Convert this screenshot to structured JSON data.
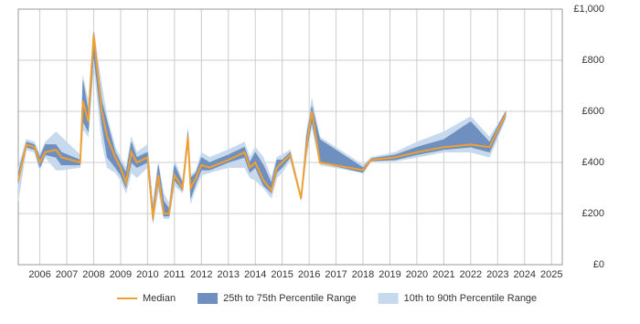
{
  "chart_data": {
    "type": "line",
    "x": [
      2005.2,
      2005.5,
      2005.8,
      2006.0,
      2006.2,
      2006.6,
      2006.8,
      2007.5,
      2007.6,
      2007.8,
      2008.0,
      2008.3,
      2008.5,
      2008.8,
      2009.0,
      2009.2,
      2009.4,
      2009.6,
      2010.0,
      2010.2,
      2010.4,
      2010.6,
      2010.8,
      2011.0,
      2011.3,
      2011.5,
      2011.6,
      2011.8,
      2012.0,
      2012.3,
      2013.0,
      2013.6,
      2013.8,
      2014.0,
      2014.3,
      2014.6,
      2014.8,
      2015.0,
      2015.3,
      2015.7,
      2015.9,
      2016.1,
      2016.4,
      2018.0,
      2018.3,
      2019.2,
      2020.0,
      2021.0,
      2022.0,
      2022.7,
      2023.3
    ],
    "series": [
      {
        "name": "Median",
        "color": "#f0a030",
        "values": [
          330,
          470,
          460,
          400,
          440,
          450,
          420,
          400,
          640,
          560,
          900,
          600,
          500,
          420,
          380,
          320,
          440,
          400,
          420,
          180,
          350,
          200,
          200,
          350,
          300,
          500,
          300,
          340,
          390,
          380,
          410,
          440,
          380,
          400,
          330,
          290,
          380,
          400,
          430,
          260,
          460,
          600,
          400,
          370,
          410,
          420,
          440,
          460,
          470,
          460,
          590
        ]
      },
      {
        "name": "25th to 75th Percentile Range",
        "color": "#6f8fbf",
        "low": [
          320,
          460,
          450,
          380,
          430,
          420,
          390,
          390,
          560,
          520,
          820,
          550,
          420,
          380,
          350,
          300,
          400,
          380,
          400,
          170,
          320,
          190,
          190,
          330,
          290,
          480,
          260,
          320,
          370,
          370,
          400,
          420,
          360,
          380,
          310,
          280,
          360,
          380,
          420,
          255,
          440,
          560,
          400,
          360,
          405,
          410,
          430,
          450,
          460,
          440,
          580
        ],
        "high": [
          360,
          480,
          470,
          420,
          470,
          470,
          440,
          410,
          720,
          600,
          910,
          640,
          560,
          440,
          400,
          360,
          480,
          420,
          440,
          220,
          390,
          250,
          220,
          390,
          320,
          520,
          340,
          360,
          420,
          400,
          430,
          460,
          400,
          440,
          390,
          320,
          410,
          410,
          440,
          265,
          500,
          620,
          490,
          380,
          415,
          430,
          460,
          490,
          560,
          480,
          600
        ]
      },
      {
        "name": "10th to 90th Percentile Range",
        "color": "#c6d9ed",
        "low": [
          250,
          450,
          440,
          370,
          420,
          370,
          370,
          380,
          530,
          500,
          780,
          480,
          380,
          360,
          330,
          280,
          360,
          340,
          380,
          160,
          290,
          180,
          180,
          310,
          280,
          470,
          240,
          300,
          350,
          360,
          380,
          380,
          340,
          330,
          300,
          260,
          340,
          360,
          410,
          250,
          420,
          540,
          390,
          360,
          405,
          405,
          420,
          440,
          440,
          420,
          570
        ],
        "high": [
          380,
          490,
          480,
          430,
          480,
          520,
          500,
          430,
          740,
          640,
          920,
          700,
          580,
          460,
          420,
          380,
          500,
          440,
          470,
          240,
          400,
          280,
          240,
          410,
          330,
          530,
          350,
          370,
          440,
          420,
          450,
          480,
          420,
          460,
          420,
          340,
          420,
          430,
          450,
          270,
          520,
          650,
          500,
          390,
          420,
          440,
          480,
          520,
          580,
          500,
          600
        ]
      }
    ],
    "xlim": [
      2005.2,
      2025.4
    ],
    "xticks": [
      2006,
      2007,
      2008,
      2009,
      2010,
      2011,
      2012,
      2013,
      2014,
      2015,
      2016,
      2017,
      2018,
      2019,
      2020,
      2021,
      2022,
      2023,
      2024,
      2025
    ],
    "ylim": [
      0,
      1000
    ],
    "yticks": [
      {
        "value": 0,
        "label": "£0"
      },
      {
        "value": 200,
        "label": "£200"
      },
      {
        "value": 400,
        "label": "£400"
      },
      {
        "value": 600,
        "label": "£600"
      },
      {
        "value": 800,
        "label": "£800"
      },
      {
        "value": 1000,
        "label": "£1,000"
      }
    ],
    "grid": true,
    "legend": "bottom"
  }
}
